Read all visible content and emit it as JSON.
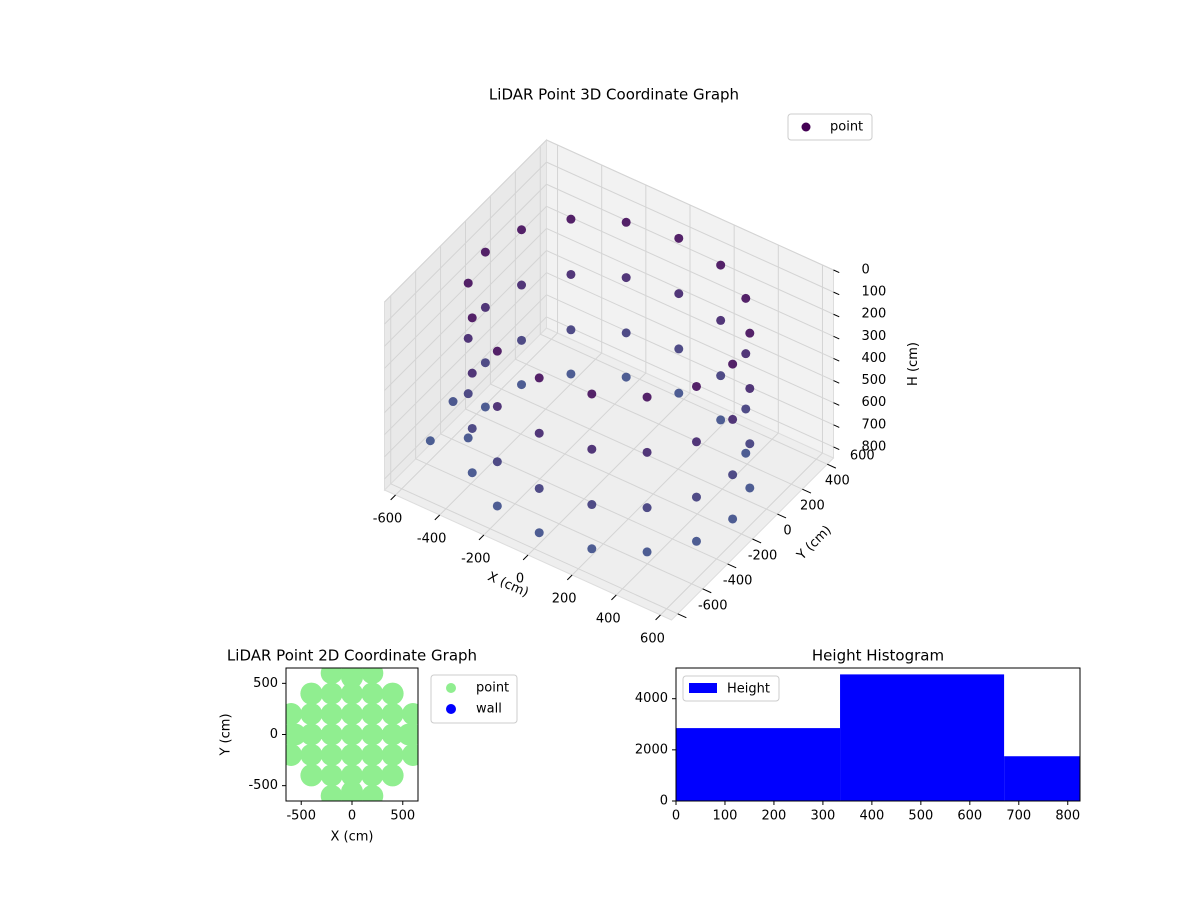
{
  "chart_data": [
    {
      "type": "scatter3d",
      "title": "LiDAR Point 3D Coordinate Graph",
      "xlabel": "X (cm)",
      "ylabel": "Y (cm)",
      "zlabel": "H (cm)",
      "xlim": [
        -650,
        650
      ],
      "ylim": [
        -650,
        650
      ],
      "zlim": [
        0,
        850
      ],
      "zinvert": true,
      "xticks": [
        -600,
        -400,
        -200,
        0,
        200,
        400,
        600
      ],
      "yticks": [
        -600,
        -400,
        -200,
        0,
        200,
        400,
        600
      ],
      "zticks": [
        0,
        100,
        200,
        300,
        400,
        500,
        600,
        700,
        800
      ],
      "legend": "upper right",
      "colormap": [
        "#440154",
        "#3b528b"
      ],
      "series": [
        {
          "name": "point",
          "color": "#440154",
          "x": [
            -396,
            -396,
            -396,
            -396,
            -214,
            -214,
            -214,
            -214,
            -517,
            -517,
            -517,
            -517,
            0,
            0,
            0,
            0,
            -560,
            -560,
            -560,
            -560,
            214,
            214,
            214,
            214,
            -517,
            -517,
            -517,
            -517,
            396,
            396,
            396,
            396,
            -396,
            -396,
            -396,
            -396,
            517,
            517,
            517,
            517,
            -214,
            -214,
            -214,
            -214,
            560,
            560,
            560,
            560,
            0,
            0,
            0,
            0,
            517,
            517,
            517,
            517,
            214,
            214,
            214,
            214,
            396,
            396,
            396,
            396,
            -640,
            -650
          ],
          "y": [
            396,
            396,
            396,
            396,
            517,
            517,
            517,
            517,
            214,
            214,
            214,
            214,
            560,
            560,
            560,
            560,
            0,
            0,
            0,
            0,
            517,
            517,
            517,
            517,
            -214,
            -214,
            -214,
            -214,
            396,
            396,
            396,
            396,
            -396,
            -396,
            -396,
            -396,
            214,
            214,
            214,
            214,
            -517,
            -517,
            -517,
            -517,
            0,
            0,
            0,
            0,
            -560,
            -560,
            -560,
            -560,
            -214,
            -214,
            -214,
            -214,
            -517,
            -517,
            -517,
            -517,
            -396,
            -396,
            -396,
            -396,
            -300,
            -100
          ],
          "z": [
            100,
            350,
            600,
            800,
            100,
            350,
            600,
            800,
            100,
            350,
            600,
            800,
            100,
            350,
            600,
            800,
            100,
            350,
            600,
            800,
            100,
            350,
            600,
            800,
            100,
            350,
            600,
            800,
            100,
            350,
            600,
            800,
            100,
            350,
            600,
            800,
            100,
            350,
            600,
            800,
            100,
            350,
            600,
            800,
            100,
            350,
            600,
            800,
            100,
            350,
            600,
            800,
            100,
            350,
            600,
            800,
            100,
            350,
            600,
            800,
            100,
            350,
            600,
            800,
            820,
            760
          ]
        }
      ]
    },
    {
      "type": "scatter",
      "title": "LiDAR Point 2D Coordinate Graph",
      "xlabel": "X (cm)",
      "ylabel": "Y (cm)",
      "xlim": [
        -650,
        650
      ],
      "ylim": [
        -650,
        650
      ],
      "xticks": [
        -500,
        0,
        500
      ],
      "yticks": [
        -500,
        0,
        500
      ],
      "legend": "outside right",
      "series": [
        {
          "name": "point",
          "color": "#90ee90",
          "x": [
            -600,
            -600,
            -600,
            -400,
            -400,
            -400,
            -400,
            -400,
            -200,
            -200,
            -200,
            -200,
            -200,
            -200,
            -200,
            0,
            0,
            0,
            0,
            0,
            0,
            0,
            200,
            200,
            200,
            200,
            200,
            200,
            200,
            400,
            400,
            400,
            400,
            400,
            600,
            600,
            600,
            560,
            396,
            0,
            -396,
            -560,
            -396,
            0,
            396
          ],
          "y": [
            -200,
            0,
            200,
            -400,
            -200,
            0,
            200,
            400,
            -600,
            -400,
            -200,
            0,
            200,
            400,
            600,
            -600,
            -400,
            -200,
            0,
            200,
            400,
            600,
            -600,
            -400,
            -200,
            0,
            200,
            400,
            600,
            -400,
            -200,
            0,
            200,
            400,
            -200,
            0,
            200,
            0,
            396,
            560,
            396,
            0,
            -396,
            -560,
            -396
          ]
        },
        {
          "name": "wall",
          "color": "#0000ff",
          "x": [],
          "y": []
        }
      ]
    },
    {
      "type": "histogram",
      "title": "Height Histogram",
      "name": "Height",
      "color": "#0000ff",
      "bins": [
        0,
        335,
        670,
        825
      ],
      "values": [
        2850,
        4950,
        1750
      ],
      "xlim": [
        0,
        825
      ],
      "ylim": [
        0,
        5200
      ],
      "xticks": [
        0,
        100,
        200,
        300,
        400,
        500,
        600,
        700,
        800
      ],
      "yticks": [
        0,
        2000,
        4000
      ],
      "legend": "upper left"
    }
  ]
}
